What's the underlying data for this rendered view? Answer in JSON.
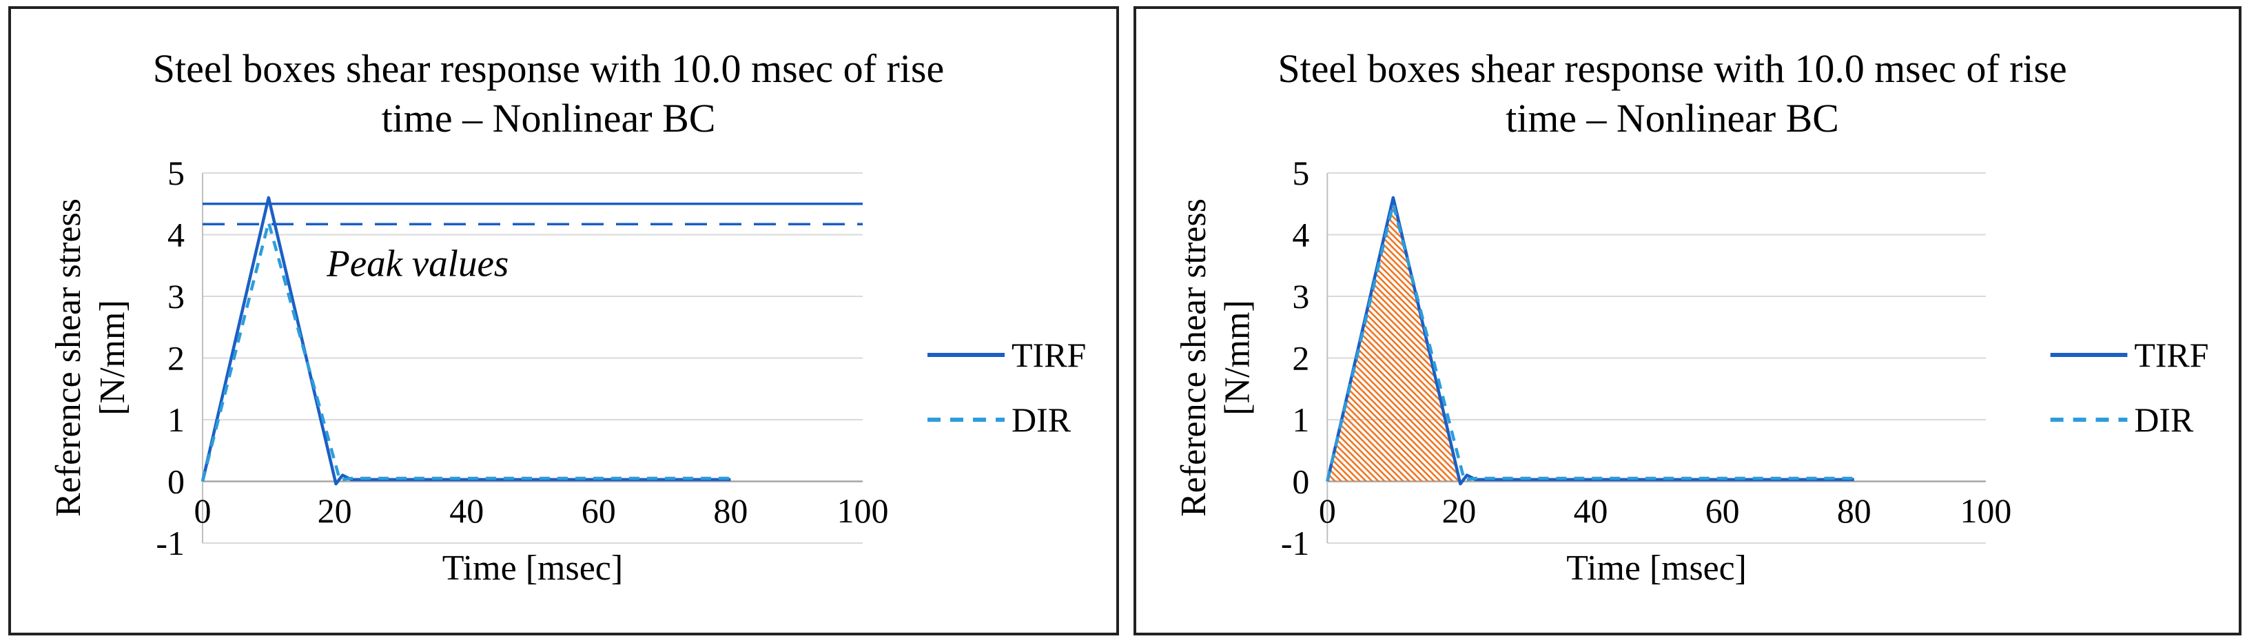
{
  "colors": {
    "tirf_blue": "#1b5fc4",
    "dir_blue": "#2d9cdb",
    "hatch_orange": "#ee7623",
    "grid_gray": "#d9d9d9",
    "zero_axis_gray": "#a6a6a6",
    "axis_gray": "#bfbfbf",
    "panel_border": "#222222"
  },
  "chart_data": [
    {
      "type": "line",
      "title_line1": "Steel boxes shear response with 10.0 msec of rise",
      "title_line2": "time – Nonlinear BC",
      "xlabel": "Time [msec]",
      "ylabel_line1": "Reference shear stress",
      "ylabel_line2": "[N/mm]",
      "xlim": [
        0,
        100
      ],
      "ylim": [
        -1,
        5
      ],
      "xticks": [
        0,
        20,
        40,
        60,
        80,
        100
      ],
      "yticks": [
        -1,
        0,
        1,
        2,
        3,
        4,
        5
      ],
      "grid": "horizontal",
      "legend_position": "right",
      "legend": [
        {
          "label": "TIRF",
          "style": "solid",
          "color": "#1b5fc4"
        },
        {
          "label": "DIR",
          "style": "dashed",
          "color": "#2d9cdb"
        }
      ],
      "series": [
        {
          "name": "TIRF",
          "style": "solid",
          "color": "#1b5fc4",
          "points": [
            [
              0,
              0
            ],
            [
              10,
              4.6
            ],
            [
              20.2,
              -0.04
            ],
            [
              21.2,
              0.1
            ],
            [
              22.5,
              0.03
            ],
            [
              80,
              0.03
            ]
          ]
        },
        {
          "name": "DIR",
          "style": "dashed",
          "color": "#2d9cdb",
          "points": [
            [
              0,
              0
            ],
            [
              10,
              4.2
            ],
            [
              20.8,
              0.02
            ],
            [
              22.5,
              0.05
            ],
            [
              80,
              0.05
            ]
          ]
        }
      ],
      "reference_lines": [
        {
          "value": 4.5,
          "style": "solid",
          "color": "#1b5fc4"
        },
        {
          "value": 4.17,
          "style": "dashed",
          "color": "#1b5fc4"
        }
      ],
      "annotations": [
        {
          "text": "Peak values",
          "x": 18.8,
          "y": 3.33,
          "italic": true
        }
      ],
      "area_fill": null
    },
    {
      "type": "line",
      "title_line1": "Steel boxes shear response with 10.0 msec of rise",
      "title_line2": "time – Nonlinear BC",
      "xlabel": "Time [msec]",
      "ylabel_line1": "Reference shear stress",
      "ylabel_line2": "[N/mm]",
      "xlim": [
        0,
        100
      ],
      "ylim": [
        -1,
        5
      ],
      "xticks": [
        0,
        20,
        40,
        60,
        80,
        100
      ],
      "yticks": [
        -1,
        0,
        1,
        2,
        3,
        4,
        5
      ],
      "grid": "horizontal",
      "legend_position": "right",
      "legend": [
        {
          "label": "TIRF",
          "style": "solid",
          "color": "#1b5fc4"
        },
        {
          "label": "DIR",
          "style": "dashed",
          "color": "#2d9cdb"
        }
      ],
      "series": [
        {
          "name": "TIRF",
          "style": "solid",
          "color": "#1b5fc4",
          "points": [
            [
              0,
              0
            ],
            [
              10,
              4.6
            ],
            [
              20.2,
              -0.04
            ],
            [
              21.2,
              0.1
            ],
            [
              22.5,
              0.03
            ],
            [
              80,
              0.03
            ]
          ]
        },
        {
          "name": "DIR",
          "style": "dashed",
          "color": "#2d9cdb",
          "points": [
            [
              0,
              0
            ],
            [
              10,
              4.5
            ],
            [
              20.8,
              0.02
            ],
            [
              22.5,
              0.05
            ],
            [
              80,
              0.05
            ]
          ]
        }
      ],
      "reference_lines": [],
      "annotations": [],
      "area_fill": {
        "hatch_color": "#ee7623",
        "pattern": "diagonal-stripes",
        "outline_points": [
          [
            0,
            0
          ],
          [
            10,
            4.6
          ],
          [
            20.2,
            0
          ]
        ]
      }
    }
  ]
}
